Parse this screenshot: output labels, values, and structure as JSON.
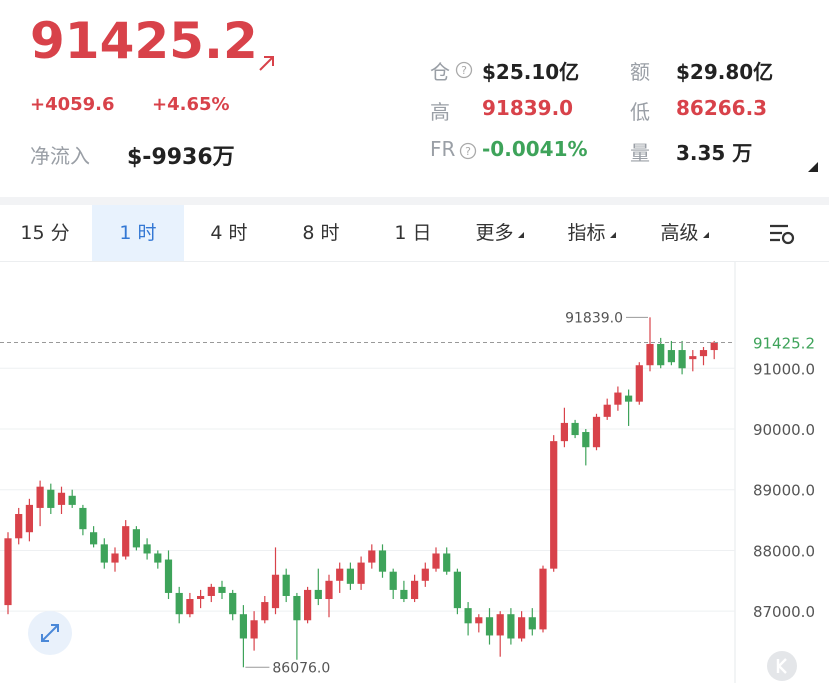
{
  "header": {
    "price": "91425.2",
    "change": "+4059.6",
    "change_pct": "+4.65%",
    "net_inflow_label": "净流入",
    "net_inflow": "$-9936万",
    "stats": [
      {
        "label": "仓",
        "value": "$25.10亿",
        "color": "#222222"
      },
      {
        "label": "额",
        "value": "$29.80亿",
        "color": "#222222"
      },
      {
        "label": "高",
        "value": "91839.0",
        "color": "#d8424a"
      },
      {
        "label": "低",
        "value": "86266.3",
        "color": "#d8424a"
      },
      {
        "label": "FR",
        "value": "-0.0041%",
        "color": "#3ea35a"
      },
      {
        "label": "量",
        "value": "3.35 万",
        "color": "#222222"
      }
    ]
  },
  "tabs": {
    "items": [
      "15 分",
      "1 时",
      "4 时",
      "8 时",
      "1 日",
      "更多",
      "指标",
      "高级"
    ],
    "active": 1
  },
  "chart_data": {
    "type": "candlestick",
    "up_color": "#d8424a",
    "down_color": "#3ea35a",
    "open": [
      87100,
      88200,
      88300,
      88700,
      89000,
      88750,
      88900,
      88700,
      88300,
      88100,
      87800,
      87900,
      88350,
      88100,
      87950,
      87850,
      87300,
      86950,
      87200,
      87250,
      87400,
      87300,
      86950,
      86550,
      86850,
      87050,
      87600,
      87250,
      86850,
      87350,
      87200,
      87500,
      87700,
      87450,
      87800,
      88000,
      87650,
      87350,
      87200,
      87500,
      87700,
      87950,
      87650,
      87050,
      86800,
      86900,
      86600,
      86950,
      86550,
      86900,
      86700,
      87700,
      89800,
      90100,
      89950,
      89700,
      90200,
      90400,
      90550,
      90450,
      91050,
      91400,
      91300,
      91300,
      91150,
      91200,
      91300
    ],
    "high": [
      88300,
      88700,
      88850,
      89150,
      89100,
      89050,
      89000,
      88750,
      88400,
      88200,
      88050,
      88500,
      88400,
      88200,
      88000,
      88000,
      87400,
      87300,
      87350,
      87450,
      87500,
      87350,
      87100,
      87000,
      87250,
      88050,
      87700,
      87300,
      87400,
      87700,
      87600,
      87800,
      87800,
      87900,
      88100,
      88100,
      87700,
      87500,
      87600,
      87800,
      88050,
      88050,
      87700,
      87150,
      86950,
      87050,
      87000,
      87050,
      87000,
      87050,
      87750,
      89900,
      90350,
      90150,
      90000,
      90250,
      90500,
      90700,
      90650,
      91100,
      91839,
      91500,
      91450,
      91450,
      91300,
      91350,
      91450
    ],
    "low": [
      86950,
      88100,
      88150,
      88400,
      88600,
      88600,
      88700,
      88250,
      88050,
      87700,
      87650,
      87850,
      88000,
      87850,
      87700,
      87200,
      86800,
      86900,
      87050,
      87150,
      87200,
      86850,
      86076,
      86350,
      86800,
      86950,
      87150,
      86200,
      86800,
      87100,
      86900,
      87300,
      87350,
      87350,
      87700,
      87550,
      87200,
      87150,
      87150,
      87400,
      87650,
      87600,
      86950,
      86600,
      86650,
      86450,
      86250,
      86450,
      86500,
      86600,
      86650,
      87650,
      89700,
      89850,
      89400,
      89650,
      90150,
      90300,
      90050,
      90400,
      90950,
      91000,
      91050,
      90900,
      90950,
      91050,
      91150
    ],
    "close": [
      88200,
      88600,
      88750,
      89050,
      88700,
      88950,
      88750,
      88350,
      88100,
      87800,
      87950,
      88400,
      88050,
      87950,
      87800,
      87300,
      86950,
      87200,
      87250,
      87400,
      87300,
      86950,
      86550,
      86850,
      87150,
      87600,
      87250,
      86850,
      87350,
      87200,
      87500,
      87700,
      87450,
      87800,
      88000,
      87650,
      87350,
      87200,
      87500,
      87700,
      87950,
      87650,
      87050,
      86800,
      86900,
      86600,
      86950,
      86550,
      86900,
      86700,
      87700,
      89800,
      90100,
      89900,
      89700,
      90200,
      90400,
      90600,
      90450,
      91050,
      91400,
      91050,
      91100,
      91000,
      91200,
      91300,
      91425.2
    ],
    "ylim": [
      85817,
      92750
    ],
    "yticks": [
      {
        "value": 87000,
        "label": "87000.0"
      },
      {
        "value": 88000,
        "label": "88000.0"
      },
      {
        "value": 89000,
        "label": "89000.0"
      },
      {
        "value": 90000,
        "label": "90000.0"
      },
      {
        "value": 91000,
        "label": "91000.0"
      }
    ],
    "high_marker": {
      "value": 91839,
      "label": "91839.0"
    },
    "low_marker": {
      "value": 86076,
      "label": "86076.0"
    },
    "last_price": {
      "value": 91425.2,
      "label": "91425.2"
    },
    "grid": true
  }
}
